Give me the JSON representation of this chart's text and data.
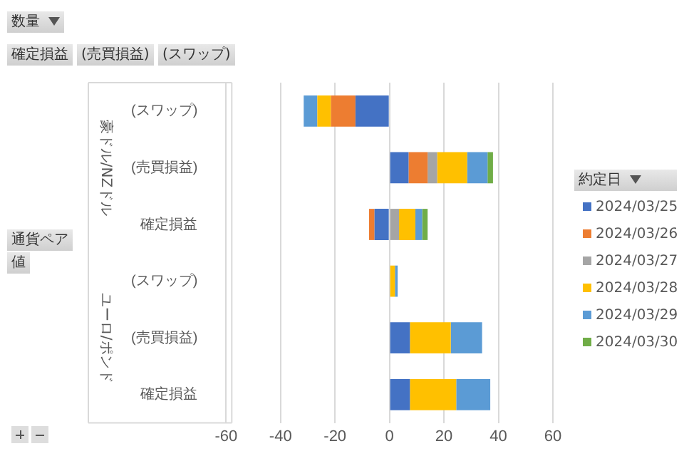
{
  "chart_data": {
    "type": "bar",
    "orientation": "horizontal",
    "stacked": true,
    "title": "数量",
    "legend_title": "約定日",
    "categories": [
      "(スワップ)",
      "(売買損益)",
      "確定損益",
      "(スワップ)",
      "(売買損益)",
      "確定損益"
    ],
    "series": [
      {
        "name": "2024/03/25",
        "color": "#4472c4",
        "values": [
          -12.5,
          7,
          -5.5,
          null,
          7.5,
          7.5
        ]
      },
      {
        "name": "2024/03/26",
        "color": "#ed7d31",
        "values": [
          -9,
          7,
          -2,
          null,
          null,
          null
        ]
      },
      {
        "name": "2024/03/27",
        "color": "#a5a5a5",
        "values": [
          null,
          3.5,
          3.5,
          null,
          null,
          null
        ]
      },
      {
        "name": "2024/03/28",
        "color": "#ffc000",
        "values": [
          -5,
          11,
          6,
          2,
          15,
          17
        ]
      },
      {
        "name": "2024/03/29",
        "color": "#5b9bd5",
        "values": [
          -5,
          7.5,
          2.5,
          1,
          11.5,
          12.5
        ]
      },
      {
        "name": "2024/03/30",
        "color": "#70ad47",
        "values": [
          null,
          2,
          2,
          null,
          null,
          null
        ]
      }
    ],
    "xlim": [
      -60,
      60
    ],
    "xticks": [
      -60,
      -40,
      -20,
      0,
      20,
      40,
      60
    ],
    "grid": "x",
    "legend": "right",
    "annotations": [
      "豪ドル/NZドル",
      "ユーロ/ポンド",
      "確定損益",
      "(売買損益)",
      "(スワップ)",
      "通貨ペア",
      "値"
    ]
  }
}
